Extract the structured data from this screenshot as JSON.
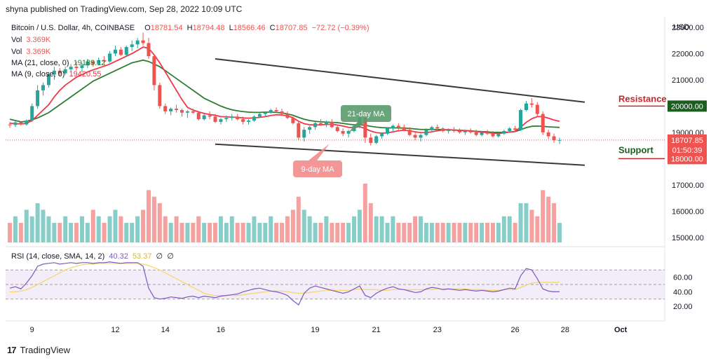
{
  "header": {
    "published": "shyna published on TradingView.com, Sep 28, 2022 10:09 UTC"
  },
  "footer": {
    "logo_text": "TradingView",
    "logo_mark": "17"
  },
  "legend": {
    "symbol": "Bitcoin / U.S. Dollar, 4h, COINBASE",
    "o_label": "O",
    "o": "18781.54",
    "h_label": "H",
    "h": "18794.48",
    "l_label": "L",
    "l": "18566.46",
    "c_label": "C",
    "c": "18707.85",
    "change": "−72.72 (−0.39%)",
    "vol1_label": "Vol",
    "vol1": "3.369K",
    "vol2_label": "Vol",
    "vol2": "3.369K",
    "ma21_label": "MA (21, close, 0)",
    "ma21": "19189.12",
    "ma9_label": "MA (9, close, 0)",
    "ma9": "19420.55",
    "rsi_label": "RSI (14, close, SMA, 14, 2)",
    "rsi": "40.32",
    "rsi_sma": "53.37",
    "rsi_extra1": "∅",
    "rsi_extra2": "∅"
  },
  "annotations": {
    "ma21_callout": "21-day MA",
    "ma9_callout": "9-day MA",
    "resistance": "Resistance",
    "resistance_value": "20000.00",
    "support": "Support",
    "support_value": "18000.00"
  },
  "price_axis": {
    "currency": "USD",
    "ticks": [
      "23000.00",
      "22000.00",
      "21000.00",
      "20000.00",
      "19000.00",
      "18000.00",
      "17000.00",
      "16000.00",
      "15000.00"
    ],
    "current_price": "18707.85",
    "countdown": "01:50:39"
  },
  "rsi_axis": {
    "ticks": [
      "60.00",
      "40.00",
      "20.00"
    ]
  },
  "time_axis": {
    "ticks": [
      "9",
      "12",
      "14",
      "16",
      "19",
      "21",
      "23",
      "26",
      "28",
      "Oct"
    ]
  },
  "colors": {
    "up": "#26a69a",
    "down": "#ef5350",
    "ma21": "#2e7d32",
    "ma9": "#f23645",
    "rsi": "#7e57c2",
    "rsi_sma": "#f5d76e",
    "channel": "#3a3a3a"
  },
  "chart_data": {
    "type": "candlestick",
    "timeframe": "4h",
    "ylim": [
      14700,
      23400
    ],
    "candles": [
      [
        19300,
        19400,
        19180,
        19280
      ],
      [
        19280,
        19450,
        19200,
        19380
      ],
      [
        19380,
        19420,
        19250,
        19300
      ],
      [
        19300,
        19500,
        19250,
        19450
      ],
      [
        19450,
        20100,
        19400,
        20000
      ],
      [
        20000,
        20800,
        19900,
        20600
      ],
      [
        20600,
        20900,
        20400,
        20800
      ],
      [
        20800,
        21300,
        20700,
        21200
      ],
      [
        21200,
        21500,
        21000,
        21350
      ],
      [
        21350,
        21450,
        21150,
        21250
      ],
      [
        21250,
        21500,
        21200,
        21400
      ],
      [
        21400,
        21600,
        21300,
        21500
      ],
      [
        21500,
        21700,
        21350,
        21450
      ],
      [
        21450,
        21650,
        21300,
        21550
      ],
      [
        21550,
        21800,
        21450,
        21700
      ],
      [
        21700,
        21750,
        21500,
        21600
      ],
      [
        21600,
        21850,
        21550,
        21750
      ],
      [
        21750,
        21900,
        21600,
        21700
      ],
      [
        21700,
        22100,
        21650,
        22000
      ],
      [
        22000,
        22300,
        21900,
        22150
      ],
      [
        22150,
        22250,
        21900,
        21950
      ],
      [
        21950,
        22300,
        21900,
        22250
      ],
      [
        22250,
        22500,
        22100,
        22350
      ],
      [
        22350,
        22600,
        22200,
        22500
      ],
      [
        22500,
        22800,
        22300,
        22400
      ],
      [
        22400,
        22600,
        21800,
        21900
      ],
      [
        21900,
        21950,
        20600,
        20800
      ],
      [
        20800,
        20900,
        19900,
        20000
      ],
      [
        20000,
        20100,
        19700,
        19800
      ],
      [
        19800,
        19950,
        19650,
        19900
      ],
      [
        19900,
        20050,
        19750,
        19850
      ],
      [
        19850,
        19900,
        19600,
        19750
      ],
      [
        19750,
        19850,
        19550,
        19800
      ],
      [
        19800,
        19900,
        19700,
        19750
      ],
      [
        19750,
        19800,
        19450,
        19500
      ],
      [
        19500,
        19700,
        19450,
        19650
      ],
      [
        19650,
        19800,
        19500,
        19600
      ],
      [
        19600,
        19700,
        19350,
        19400
      ],
      [
        19400,
        19550,
        19300,
        19500
      ],
      [
        19500,
        19650,
        19400,
        19550
      ],
      [
        19550,
        19700,
        19450,
        19600
      ],
      [
        19600,
        19700,
        19450,
        19500
      ],
      [
        19500,
        19600,
        19300,
        19400
      ],
      [
        19400,
        19500,
        19300,
        19450
      ],
      [
        19450,
        19650,
        19400,
        19600
      ],
      [
        19600,
        19750,
        19550,
        19700
      ],
      [
        19700,
        19800,
        19600,
        19750
      ],
      [
        19750,
        19900,
        19700,
        19850
      ],
      [
        19850,
        19950,
        19750,
        19800
      ],
      [
        19800,
        19900,
        19650,
        19700
      ],
      [
        19700,
        19800,
        19500,
        19550
      ],
      [
        19550,
        19600,
        19300,
        19350
      ],
      [
        19350,
        19400,
        18700,
        18800
      ],
      [
        18800,
        19200,
        18650,
        19100
      ],
      [
        19100,
        19250,
        18950,
        19200
      ],
      [
        19200,
        19400,
        19100,
        19350
      ],
      [
        19350,
        19500,
        19250,
        19300
      ],
      [
        19300,
        19450,
        19200,
        19400
      ],
      [
        19400,
        19500,
        19150,
        19200
      ],
      [
        19200,
        19300,
        19000,
        19050
      ],
      [
        19050,
        19150,
        18850,
        18950
      ],
      [
        18950,
        19100,
        18800,
        19050
      ],
      [
        19050,
        19300,
        19000,
        19250
      ],
      [
        19250,
        19650,
        19150,
        19550
      ],
      [
        19550,
        19600,
        18600,
        18800
      ],
      [
        18800,
        18950,
        18500,
        18600
      ],
      [
        18600,
        18900,
        18550,
        18850
      ],
      [
        18850,
        19000,
        18750,
        18950
      ],
      [
        18950,
        19200,
        18900,
        19150
      ],
      [
        19150,
        19300,
        19050,
        19250
      ],
      [
        19250,
        19350,
        19100,
        19200
      ],
      [
        19200,
        19300,
        19050,
        19100
      ],
      [
        19100,
        19200,
        18850,
        18900
      ],
      [
        18900,
        19050,
        18700,
        18800
      ],
      [
        18800,
        18950,
        18650,
        18900
      ],
      [
        18900,
        19150,
        18850,
        19100
      ],
      [
        19100,
        19250,
        19000,
        19200
      ],
      [
        19200,
        19300,
        19100,
        19150
      ],
      [
        19150,
        19200,
        19000,
        19050
      ],
      [
        19050,
        19150,
        18950,
        19100
      ],
      [
        19100,
        19200,
        19000,
        19050
      ],
      [
        19050,
        19150,
        18950,
        19000
      ],
      [
        19000,
        19100,
        18900,
        19050
      ],
      [
        19050,
        19150,
        18950,
        19000
      ],
      [
        19000,
        19100,
        18850,
        18900
      ],
      [
        18900,
        19050,
        18850,
        19000
      ],
      [
        19000,
        19100,
        18900,
        18950
      ],
      [
        18950,
        19050,
        18800,
        18850
      ],
      [
        18850,
        19000,
        18800,
        18950
      ],
      [
        18950,
        19100,
        18900,
        19050
      ],
      [
        19050,
        19200,
        19000,
        19150
      ],
      [
        19150,
        19250,
        19050,
        19100
      ],
      [
        19100,
        19900,
        19050,
        19850
      ],
      [
        19850,
        20200,
        19800,
        20100
      ],
      [
        20100,
        20300,
        19950,
        20050
      ],
      [
        20050,
        20150,
        19600,
        19700
      ],
      [
        19700,
        19800,
        18900,
        19000
      ],
      [
        19000,
        19100,
        18750,
        18850
      ],
      [
        18850,
        18950,
        18600,
        18700
      ],
      [
        18700,
        18800,
        18560,
        18708
      ]
    ],
    "volume": [
      3,
      4,
      3,
      5,
      4,
      6,
      5,
      4,
      3,
      3,
      4,
      3,
      3,
      4,
      3,
      5,
      4,
      3,
      4,
      5,
      4,
      3,
      3,
      4,
      5,
      8,
      7,
      6,
      4,
      3,
      4,
      3,
      3,
      3,
      4,
      3,
      3,
      3,
      4,
      3,
      4,
      3,
      3,
      3,
      4,
      3,
      3,
      4,
      3,
      3,
      4,
      5,
      7,
      5,
      4,
      3,
      3,
      4,
      3,
      3,
      3,
      3,
      4,
      5,
      9,
      6,
      4,
      4,
      3,
      4,
      3,
      3,
      3,
      4,
      4,
      3,
      3,
      3,
      3,
      3,
      3,
      3,
      3,
      3,
      3,
      3,
      3,
      3,
      3,
      4,
      4,
      3,
      6,
      6,
      5,
      4,
      8,
      7,
      6,
      3
    ],
    "rsi": [
      45,
      47,
      44,
      52,
      62,
      75,
      78,
      79,
      80,
      78,
      79,
      80,
      79,
      80,
      80,
      79,
      80,
      80,
      81,
      80,
      79,
      80,
      80,
      80,
      75,
      45,
      32,
      30,
      31,
      33,
      32,
      31,
      33,
      34,
      32,
      34,
      33,
      32,
      34,
      35,
      36,
      37,
      40,
      42,
      44,
      45,
      43,
      41,
      40,
      38,
      35,
      28,
      22,
      38,
      45,
      48,
      46,
      44,
      42,
      40,
      38,
      40,
      44,
      48,
      35,
      32,
      38,
      42,
      45,
      47,
      44,
      43,
      41,
      39,
      40,
      44,
      46,
      45,
      43,
      44,
      43,
      42,
      43,
      42,
      41,
      42,
      41,
      40,
      41,
      43,
      45,
      44,
      62,
      72,
      70,
      58,
      44,
      41,
      40,
      40.3
    ],
    "rsi_range": [
      0,
      100
    ],
    "rsi_levels": [
      70,
      50,
      30
    ],
    "ma21": [
      19500,
      19450,
      19400,
      19420,
      19480,
      19550,
      19650,
      19750,
      19900,
      20050,
      20200,
      20350,
      20500,
      20650,
      20800,
      20950,
      21050,
      21150,
      21250,
      21350,
      21450,
      21550,
      21650,
      21700,
      21750,
      21700,
      21600,
      21500,
      21350,
      21200,
      21050,
      20900,
      20750,
      20600,
      20450,
      20300,
      20200,
      20100,
      20000,
      19920,
      19860,
      19820,
      19790,
      19770,
      19760,
      19760,
      19770,
      19770,
      19760,
      19740,
      19700,
      19650,
      19570,
      19500,
      19450,
      19420,
      19400,
      19390,
      19380,
      19370,
      19340,
      19310,
      19290,
      19290,
      19270,
      19230,
      19200,
      19180,
      19170,
      19170,
      19170,
      19160,
      19150,
      19130,
      19110,
      19110,
      19110,
      19110,
      19100,
      19100,
      19090,
      19080,
      19070,
      19060,
      19040,
      19030,
      19020,
      19000,
      19000,
      19000,
      19010,
      19030,
      19100,
      19180,
      19230,
      19240,
      19230,
      19210,
      19200,
      19189
    ],
    "ma9": [
      19350,
      19330,
      19320,
      19340,
      19450,
      19650,
      19850,
      20050,
      20350,
      20600,
      20800,
      20950,
      21100,
      21200,
      21300,
      21380,
      21450,
      21520,
      21600,
      21700,
      21800,
      21900,
      22000,
      22120,
      22250,
      22200,
      21950,
      21650,
      21300,
      20950,
      20600,
      20250,
      19950,
      19850,
      19780,
      19720,
      19680,
      19650,
      19600,
      19590,
      19580,
      19570,
      19550,
      19540,
      19550,
      19570,
      19600,
      19640,
      19670,
      19660,
      19630,
      19560,
      19420,
      19330,
      19290,
      19280,
      19290,
      19300,
      19310,
      19280,
      19240,
      19190,
      19180,
      19220,
      19140,
      19050,
      18990,
      18970,
      18980,
      19020,
      19060,
      19080,
      19060,
      19020,
      18990,
      18990,
      19020,
      19060,
      19090,
      19100,
      19090,
      19070,
      19060,
      19050,
      19030,
      19010,
      18990,
      18970,
      18960,
      18980,
      19010,
      19040,
      19200,
      19380,
      19520,
      19600,
      19600,
      19540,
      19470,
      19420
    ],
    "rsi_sma": [
      40,
      40,
      41,
      43,
      46,
      50,
      54,
      58,
      62,
      66,
      70,
      73,
      75,
      77,
      78,
      78,
      79,
      79,
      79,
      79,
      79,
      79,
      79,
      79,
      78,
      76,
      73,
      70,
      66,
      62,
      58,
      54,
      50,
      46,
      42,
      38,
      36,
      35,
      35,
      35,
      35,
      35,
      36,
      37,
      38,
      39,
      40,
      41,
      41,
      41,
      40,
      39,
      38,
      38,
      39,
      40,
      41,
      42,
      42,
      42,
      42,
      42,
      43,
      44,
      43,
      43,
      43,
      42,
      42,
      43,
      43,
      43,
      43,
      43,
      43,
      43,
      43,
      44,
      44,
      44,
      44,
      44,
      44,
      43,
      43,
      43,
      42,
      42,
      42,
      43,
      43,
      43,
      46,
      49,
      52,
      53,
      53,
      53,
      53,
      53.37
    ],
    "channel_upper": {
      "from": [
        "16",
        21800
      ],
      "to": [
        "28",
        20150
      ]
    },
    "channel_lower": {
      "from": [
        "16",
        18550
      ],
      "to": [
        "28",
        17750
      ]
    },
    "resistance_level": 20000,
    "support_level": 18000
  }
}
